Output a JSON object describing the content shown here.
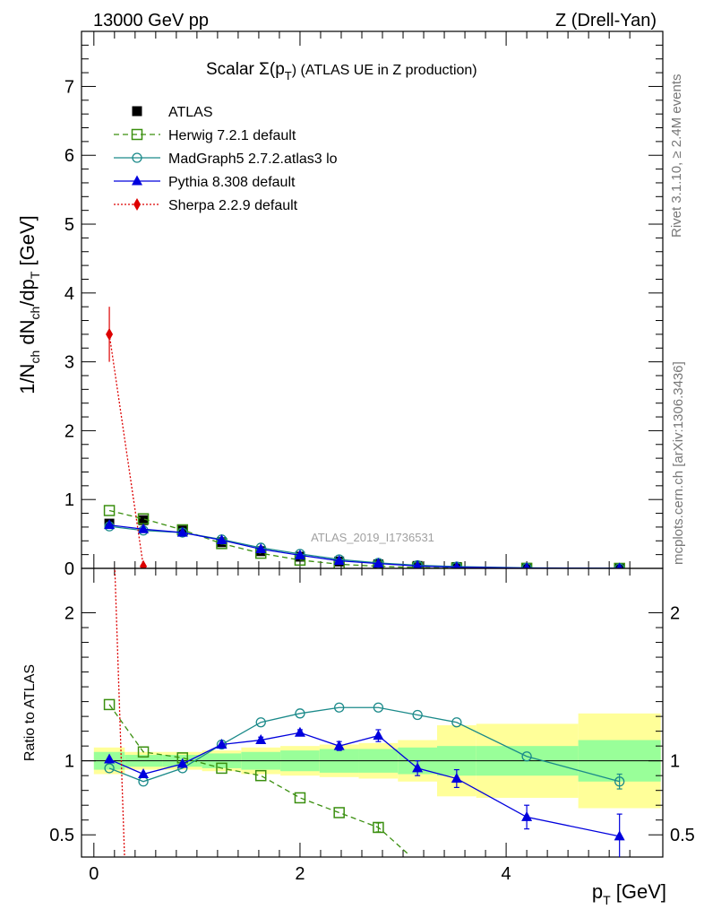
{
  "header": {
    "left": "13000 GeV pp",
    "right": "Z (Drell-Yan)"
  },
  "side_labels": {
    "rivet": "Rivet 3.1.10, ≥ 2.4M events",
    "mcplots": "mcplots.cern.ch [arXiv:1306.3436]"
  },
  "watermark": "ATLAS_2019_I1736531",
  "chart_data": [
    {
      "panel": "main",
      "type": "scatter",
      "title_main": "Scalar Σ(p",
      "title_sub": "T",
      "title_tail": ")  (ATLAS UE in Z production)",
      "ylabel": "1/N_ch dN_ch/dp_T [GeV]",
      "ylim": [
        0,
        7.8
      ],
      "xlim": [
        -0.12,
        5.52
      ],
      "yticks": [
        0,
        1,
        2,
        3,
        4,
        5,
        6,
        7
      ],
      "legend_placement": "top-left",
      "x": [
        0.15,
        0.48,
        0.86,
        1.24,
        1.62,
        2.0,
        2.38,
        2.76,
        3.14,
        3.52,
        4.2,
        5.1
      ],
      "series": [
        {
          "name": "ATLAS",
          "color": "#000000",
          "marker": "filled-square",
          "line": "none",
          "values": [
            0.65,
            0.7,
            0.55,
            0.38,
            0.25,
            0.17,
            0.1,
            0.06,
            0.035,
            0.02,
            0.008,
            0.002
          ]
        },
        {
          "name": "Herwig 7.2.1 default",
          "color": "#3a8f0f",
          "marker": "open-square",
          "line": "dashed",
          "values": [
            0.84,
            0.72,
            0.56,
            0.36,
            0.22,
            0.12,
            0.06,
            0.03,
            0.012,
            0.005,
            0.001,
            0.0003
          ]
        },
        {
          "name": "MadGraph5 2.7.2.atlas3 lo",
          "color": "#1b8a8a",
          "marker": "open-circle",
          "line": "solid",
          "values": [
            0.61,
            0.55,
            0.52,
            0.42,
            0.3,
            0.21,
            0.13,
            0.08,
            0.045,
            0.025,
            0.008,
            0.0017
          ]
        },
        {
          "name": "Pythia 8.308 default",
          "color": "#0000dd",
          "marker": "filled-triangle",
          "line": "solid",
          "values": [
            0.63,
            0.57,
            0.52,
            0.41,
            0.28,
            0.19,
            0.11,
            0.07,
            0.035,
            0.018,
            0.005,
            0.001
          ]
        },
        {
          "name": "Sherpa 2.2.9 default",
          "color": "#dd0000",
          "marker": "filled-diamond",
          "line": "dotted",
          "values": [
            3.4,
            0.03
          ],
          "x": [
            0.15,
            0.48
          ],
          "errors": [
            0.4,
            0.0
          ]
        }
      ]
    },
    {
      "panel": "ratio",
      "type": "line",
      "ylabel": "Ratio to ATLAS",
      "xlabel_main": "p",
      "xlabel_sub": "T",
      "xlabel_tail": " [GeV]",
      "ylim": [
        0.35,
        2.3
      ],
      "xlim": [
        -0.12,
        5.52
      ],
      "yticks": [
        0.5,
        1,
        2
      ],
      "xticks": [
        0,
        2,
        4
      ],
      "bands": {
        "edges": [
          0.0,
          0.3,
          0.67,
          1.05,
          1.43,
          1.81,
          2.19,
          2.57,
          2.95,
          3.33,
          3.71,
          4.7,
          5.5
        ],
        "green": [
          0.06,
          0.04,
          0.04,
          0.05,
          0.06,
          0.07,
          0.08,
          0.08,
          0.09,
          0.1,
          0.1,
          0.14
        ],
        "yellow": [
          0.09,
          0.06,
          0.06,
          0.07,
          0.09,
          0.1,
          0.11,
          0.12,
          0.14,
          0.24,
          0.25,
          0.32
        ]
      },
      "series": [
        {
          "name": "Herwig 7.2.1 default",
          "color": "#3a8f0f",
          "x": [
            0.15,
            0.48,
            0.86,
            1.24,
            1.62,
            2.0,
            2.38,
            2.76,
            3.05
          ],
          "values": [
            1.38,
            1.06,
            1.02,
            0.95,
            0.9,
            0.75,
            0.65,
            0.55,
            0.37
          ],
          "errors": [
            0.0,
            0.0,
            0.0,
            0.0,
            0.0,
            0.0,
            0.0,
            0.03,
            0.0
          ]
        },
        {
          "name": "MadGraph5 2.7.2.atlas3 lo",
          "color": "#1b8a8a",
          "x": [
            0.15,
            0.48,
            0.86,
            1.24,
            1.62,
            2.0,
            2.38,
            2.76,
            3.14,
            3.52,
            4.2,
            5.1
          ],
          "values": [
            0.95,
            0.86,
            0.95,
            1.11,
            1.26,
            1.32,
            1.36,
            1.36,
            1.31,
            1.26,
            1.03,
            0.86
          ],
          "errors": [
            0.0,
            0.0,
            0.0,
            0.0,
            0.0,
            0.0,
            0.0,
            0.0,
            0.0,
            0.0,
            0.0,
            0.05
          ]
        },
        {
          "name": "Pythia 8.308 default",
          "color": "#0000dd",
          "x": [
            0.15,
            0.48,
            0.86,
            1.24,
            1.62,
            2.0,
            2.38,
            2.76,
            3.14,
            3.52,
            4.2,
            5.1
          ],
          "values": [
            1.01,
            0.91,
            0.98,
            1.11,
            1.14,
            1.19,
            1.1,
            1.17,
            0.95,
            0.88,
            0.62,
            0.49
          ],
          "errors": [
            0.0,
            0.0,
            0.0,
            0.0,
            0.02,
            0.02,
            0.03,
            0.04,
            0.05,
            0.06,
            0.08,
            0.15
          ]
        },
        {
          "name": "Sherpa 2.2.9 default",
          "color": "#dd0000",
          "x": [
            0.15,
            0.3
          ],
          "values": [
            3.4,
            0.3
          ],
          "errors": [
            0.0,
            0.0
          ]
        }
      ]
    }
  ]
}
